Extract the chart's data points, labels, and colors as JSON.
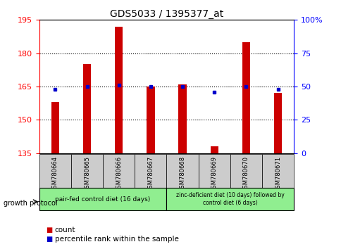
{
  "title": "GDS5033 / 1395377_at",
  "samples": [
    "GSM780664",
    "GSM780665",
    "GSM780666",
    "GSM780667",
    "GSM780668",
    "GSM780669",
    "GSM780670",
    "GSM780671"
  ],
  "counts": [
    158,
    175,
    192,
    165,
    166,
    138,
    185,
    162
  ],
  "percentiles": [
    48,
    50,
    51,
    50,
    50,
    46,
    50,
    48
  ],
  "ylim_left": [
    135,
    195
  ],
  "ylim_right": [
    0,
    100
  ],
  "yticks_left": [
    135,
    150,
    165,
    180,
    195
  ],
  "yticks_right": [
    0,
    25,
    50,
    75,
    100
  ],
  "ytick_labels_right": [
    "0",
    "25",
    "50",
    "75",
    "100%"
  ],
  "hlines": [
    150,
    165,
    180
  ],
  "bar_color": "#cc0000",
  "dot_color": "#0000cc",
  "bar_bottom": 135,
  "group1_label": "pair-fed control diet (16 days)",
  "group2_label": "zinc-deficient diet (10 days) followed by\ncontrol diet (6 days)",
  "group1_indices": [
    0,
    1,
    2,
    3
  ],
  "group2_indices": [
    4,
    5,
    6,
    7
  ],
  "group1_color": "#90ee90",
  "group2_color": "#90ee90",
  "protocol_label": "growth protocol",
  "legend_count_label": "count",
  "legend_pct_label": "percentile rank within the sample",
  "xticklabel_bg": "#cccccc",
  "figure_bg": "#ffffff",
  "title_fontsize": 10,
  "tick_fontsize": 8,
  "sample_fontsize": 6,
  "group_fontsize": 6.5,
  "legend_fontsize": 7.5
}
